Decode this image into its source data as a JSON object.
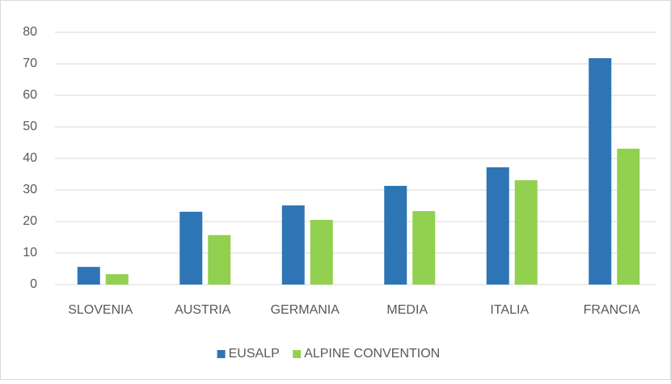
{
  "chart_data": {
    "type": "bar",
    "categories": [
      "SLOVENIA",
      "AUSTRIA",
      "GERMANIA",
      "MEDIA",
      "ITALIA",
      "FRANCIA"
    ],
    "series": [
      {
        "name": "EUSALP",
        "color": "#2e75b6",
        "values": [
          5.6,
          23.1,
          25.1,
          31.3,
          37.2,
          71.8
        ]
      },
      {
        "name": "ALPINE CONVENTION",
        "color": "#92d050",
        "values": [
          3.3,
          15.7,
          20.5,
          23.3,
          33.1,
          43.1
        ]
      }
    ],
    "ylim": [
      0,
      80
    ],
    "yticks": [
      0,
      10,
      20,
      30,
      40,
      50,
      60,
      70,
      80
    ],
    "grid": true,
    "legend": "bottom"
  }
}
